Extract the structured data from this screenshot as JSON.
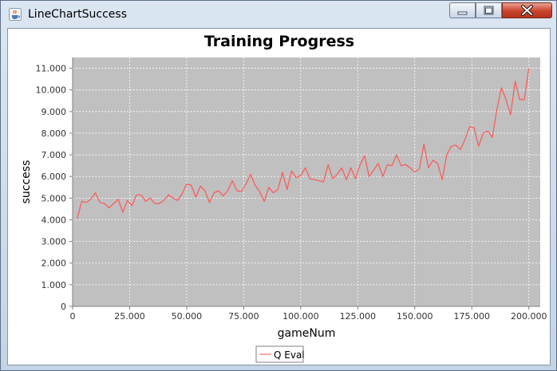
{
  "window": {
    "title": "LineChartSuccess",
    "icon": "java-cup-icon"
  },
  "chart_data": {
    "type": "line",
    "title": "Training Progress",
    "xlabel": "gameNum",
    "ylabel": "success",
    "xlim": [
      0,
      205000
    ],
    "ylim": [
      0,
      11500
    ],
    "xticks": [
      0,
      25000,
      50000,
      75000,
      100000,
      125000,
      150000,
      175000,
      200000
    ],
    "xtick_labels": [
      "0",
      "25.000",
      "50.000",
      "75.000",
      "100.000",
      "125.000",
      "150.000",
      "175.000",
      "200.000"
    ],
    "yticks": [
      0,
      1000,
      2000,
      3000,
      4000,
      5000,
      6000,
      7000,
      8000,
      9000,
      10000,
      11000
    ],
    "ytick_labels": [
      "0",
      "1.000",
      "2.000",
      "3.000",
      "4.000",
      "5.000",
      "6.000",
      "7.000",
      "8.000",
      "9.000",
      "10.000",
      "11.000"
    ],
    "grid": true,
    "legend_position": "bottom-center",
    "series": [
      {
        "name": "Q Eval",
        "color": "#ff5555",
        "x": [
          2000,
          4000,
          6000,
          8000,
          10000,
          12000,
          14000,
          16000,
          18000,
          20000,
          22000,
          24000,
          26000,
          28000,
          30000,
          32000,
          34000,
          36000,
          38000,
          40000,
          42000,
          44000,
          46000,
          48000,
          50000,
          52000,
          54000,
          56000,
          58000,
          60000,
          62000,
          64000,
          66000,
          68000,
          70000,
          72000,
          74000,
          76000,
          78000,
          80000,
          82000,
          84000,
          86000,
          88000,
          90000,
          92000,
          94000,
          96000,
          98000,
          100000,
          102000,
          104000,
          106000,
          108000,
          110000,
          112000,
          114000,
          116000,
          118000,
          120000,
          122000,
          124000,
          126000,
          128000,
          130000,
          132000,
          134000,
          136000,
          138000,
          140000,
          142000,
          144000,
          146000,
          148000,
          150000,
          152000,
          154000,
          156000,
          158000,
          160000,
          162000,
          164000,
          166000,
          168000,
          170000,
          172000,
          174000,
          176000,
          178000,
          180000,
          182000,
          184000,
          186000,
          188000,
          190000,
          192000,
          194000,
          196000,
          198000,
          200000
        ],
        "y": [
          4050,
          4850,
          4800,
          4950,
          5250,
          4800,
          4750,
          4550,
          4750,
          4950,
          4350,
          4900,
          4650,
          5150,
          5150,
          4850,
          5000,
          4750,
          4750,
          4900,
          5150,
          5000,
          4900,
          5200,
          5650,
          5600,
          5050,
          5550,
          5350,
          4800,
          5250,
          5350,
          5100,
          5350,
          5800,
          5350,
          5300,
          5650,
          6100,
          5600,
          5300,
          4850,
          5500,
          5250,
          5400,
          6200,
          5400,
          6250,
          5950,
          6050,
          6400,
          5900,
          5850,
          5800,
          5750,
          6550,
          5900,
          6100,
          6400,
          5850,
          6400,
          5900,
          6550,
          6950,
          6000,
          6300,
          6600,
          6000,
          6550,
          6500,
          7000,
          6500,
          6550,
          6400,
          6200,
          6350,
          7500,
          6400,
          6750,
          6600,
          5850,
          7000,
          7400,
          7450,
          7250,
          7700,
          8300,
          8250,
          7400,
          8000,
          8100,
          7800,
          9100,
          10100,
          9550,
          8850,
          10400,
          9550,
          9550,
          11000
        ]
      }
    ]
  }
}
